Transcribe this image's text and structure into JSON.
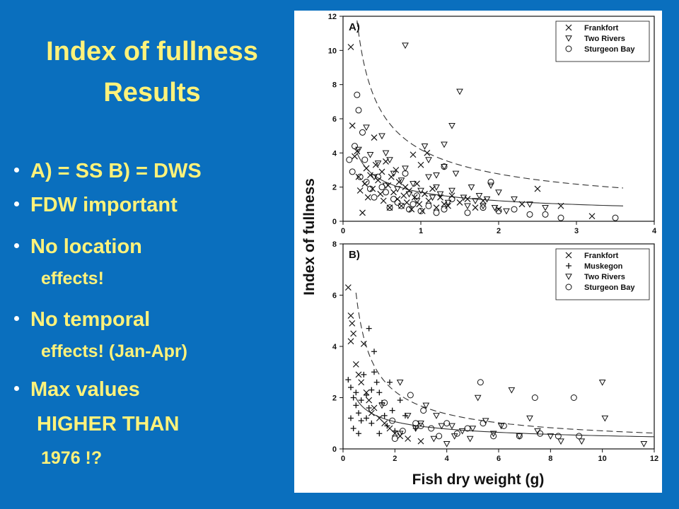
{
  "slide": {
    "title_line1": "Index of fullness",
    "title_line2": "Results",
    "bullets": [
      {
        "text": "A) = SS  B) = DWS"
      },
      {
        "text": "FDW important"
      },
      {
        "text": "No location",
        "cont": "effects!"
      },
      {
        "text": "No temporal",
        "cont": "effects! (Jan-Apr)"
      },
      {
        "text": "Max values",
        "cont": "HIGHER THAN",
        "cont2": "1976 !?"
      }
    ],
    "colors": {
      "background": "#0a6fbe",
      "text": "#fff27a",
      "bullet": "#ffffff"
    }
  },
  "chart_data": [
    {
      "type": "scatter",
      "panel_label": "A)",
      "xlabel": "Fish dry weight (g)",
      "ylabel": "Index of fullness",
      "xlim": [
        0,
        4
      ],
      "ylim": [
        0,
        12
      ],
      "xticks": [
        "0",
        "1",
        "2",
        "3",
        "4"
      ],
      "yticks": [
        "0",
        "2",
        "4",
        "6",
        "8",
        "10",
        "12"
      ],
      "legend_position": "top-right",
      "series": [
        {
          "name": "Frankfort",
          "marker": "x",
          "points": [
            [
              0.1,
              10.2
            ],
            [
              0.12,
              5.6
            ],
            [
              0.15,
              3.8
            ],
            [
              0.18,
              4.1
            ],
            [
              0.2,
              2.6
            ],
            [
              0.22,
              1.8
            ],
            [
              0.25,
              0.5
            ],
            [
              0.28,
              2.2
            ],
            [
              0.3,
              3.1
            ],
            [
              0.32,
              1.4
            ],
            [
              0.35,
              2.7
            ],
            [
              0.38,
              1.9
            ],
            [
              0.4,
              4.9
            ],
            [
              0.42,
              3.3
            ],
            [
              0.45,
              2.4
            ],
            [
              0.48,
              1.6
            ],
            [
              0.5,
              2.9
            ],
            [
              0.52,
              1.2
            ],
            [
              0.55,
              3.5
            ],
            [
              0.58,
              2.1
            ],
            [
              0.6,
              0.8
            ],
            [
              0.62,
              2.6
            ],
            [
              0.65,
              1.7
            ],
            [
              0.68,
              3.0
            ],
            [
              0.7,
              1.3
            ],
            [
              0.72,
              2.3
            ],
            [
              0.75,
              0.9
            ],
            [
              0.78,
              1.5
            ],
            [
              0.8,
              2.0
            ],
            [
              0.82,
              1.1
            ],
            [
              0.85,
              1.8
            ],
            [
              0.88,
              0.7
            ],
            [
              0.9,
              3.9
            ],
            [
              0.92,
              1.4
            ],
            [
              0.95,
              2.2
            ],
            [
              0.98,
              1.0
            ],
            [
              1.0,
              3.3
            ],
            [
              1.02,
              0.6
            ],
            [
              1.05,
              1.6
            ],
            [
              1.08,
              4.0
            ],
            [
              1.1,
              1.2
            ],
            [
              1.15,
              1.9
            ],
            [
              1.2,
              0.8
            ],
            [
              1.25,
              1.4
            ],
            [
              1.3,
              1.0
            ],
            [
              1.35,
              0.9
            ],
            [
              1.4,
              1.5
            ],
            [
              1.5,
              1.1
            ],
            [
              1.6,
              1.3
            ],
            [
              1.7,
              0.8
            ],
            [
              1.8,
              1.2
            ],
            [
              2.0,
              0.7
            ],
            [
              2.3,
              1.0
            ],
            [
              2.5,
              1.9
            ],
            [
              2.8,
              0.9
            ],
            [
              3.2,
              0.3
            ]
          ]
        },
        {
          "name": "Two Rivers",
          "marker": "triangle-down",
          "points": [
            [
              0.2,
              4.2
            ],
            [
              0.3,
              5.5
            ],
            [
              0.35,
              3.9
            ],
            [
              0.4,
              2.6
            ],
            [
              0.45,
              3.4
            ],
            [
              0.5,
              5.0
            ],
            [
              0.55,
              2.1
            ],
            [
              0.6,
              3.6
            ],
            [
              0.65,
              2.8
            ],
            [
              0.7,
              1.9
            ],
            [
              0.75,
              2.4
            ],
            [
              0.8,
              3.1
            ],
            [
              0.85,
              1.6
            ],
            [
              0.9,
              2.2
            ],
            [
              0.95,
              1.2
            ],
            [
              1.0,
              1.8
            ],
            [
              1.05,
              4.4
            ],
            [
              1.1,
              2.6
            ],
            [
              1.15,
              1.4
            ],
            [
              1.2,
              2.0
            ],
            [
              1.25,
              1.6
            ],
            [
              1.3,
              3.2
            ],
            [
              1.35,
              1.1
            ],
            [
              1.4,
              1.8
            ],
            [
              1.45,
              2.8
            ],
            [
              1.5,
              7.6
            ],
            [
              1.55,
              1.4
            ],
            [
              1.6,
              0.9
            ],
            [
              1.65,
              2.0
            ],
            [
              1.7,
              1.2
            ],
            [
              1.75,
              1.5
            ],
            [
              1.8,
              0.9
            ],
            [
              1.85,
              1.3
            ],
            [
              1.9,
              2.1
            ],
            [
              1.95,
              0.8
            ],
            [
              2.0,
              1.7
            ],
            [
              2.1,
              0.6
            ],
            [
              2.2,
              1.3
            ],
            [
              2.4,
              1.0
            ],
            [
              2.6,
              0.8
            ],
            [
              0.8,
              10.3
            ],
            [
              1.3,
              4.5
            ],
            [
              1.4,
              5.6
            ],
            [
              0.55,
              4.0
            ],
            [
              1.1,
              3.6
            ],
            [
              1.2,
              2.7
            ]
          ]
        },
        {
          "name": "Sturgeon Bay",
          "marker": "circle",
          "points": [
            [
              0.08,
              3.6
            ],
            [
              0.12,
              2.9
            ],
            [
              0.15,
              4.4
            ],
            [
              0.18,
              7.4
            ],
            [
              0.2,
              6.5
            ],
            [
              0.22,
              2.6
            ],
            [
              0.25,
              5.2
            ],
            [
              0.28,
              3.6
            ],
            [
              0.3,
              2.3
            ],
            [
              0.35,
              1.9
            ],
            [
              0.4,
              1.4
            ],
            [
              0.45,
              2.6
            ],
            [
              0.5,
              2.0
            ],
            [
              0.55,
              1.7
            ],
            [
              0.6,
              0.8
            ],
            [
              0.65,
              1.3
            ],
            [
              0.7,
              1.1
            ],
            [
              0.75,
              0.9
            ],
            [
              0.8,
              2.8
            ],
            [
              0.85,
              0.7
            ],
            [
              0.9,
              1.0
            ],
            [
              0.95,
              1.5
            ],
            [
              1.0,
              0.6
            ],
            [
              1.1,
              0.9
            ],
            [
              1.2,
              0.5
            ],
            [
              1.3,
              0.7
            ],
            [
              1.4,
              1.3
            ],
            [
              1.6,
              0.5
            ],
            [
              1.8,
              0.8
            ],
            [
              2.0,
              0.6
            ],
            [
              2.2,
              0.7
            ],
            [
              2.4,
              0.4
            ],
            [
              2.6,
              0.4
            ],
            [
              2.8,
              0.2
            ],
            [
              3.5,
              0.2
            ],
            [
              1.9,
              2.3
            ],
            [
              1.3,
              3.2
            ]
          ]
        }
      ],
      "curves": [
        {
          "style": "dashed",
          "formula": "y = 4.2 * x^-0.6",
          "x": [
            0.18,
            3.6
          ]
        },
        {
          "style": "solid",
          "formula": "y = 1.7 * x^-0.5",
          "x": [
            0.18,
            3.6
          ]
        }
      ]
    },
    {
      "type": "scatter",
      "panel_label": "B)",
      "xlabel": "Fish dry weight (g)",
      "ylabel": "Index of fullness",
      "xlim": [
        0,
        12
      ],
      "ylim": [
        0,
        8
      ],
      "xticks": [
        "0",
        "2",
        "4",
        "6",
        "8",
        "10",
        "12"
      ],
      "yticks": [
        "0",
        "2",
        "4",
        "6",
        "8"
      ],
      "legend_position": "top-right",
      "series": [
        {
          "name": "Frankfort",
          "marker": "x",
          "points": [
            [
              0.2,
              6.3
            ],
            [
              0.3,
              5.2
            ],
            [
              0.35,
              4.9
            ],
            [
              0.4,
              4.5
            ],
            [
              0.3,
              4.2
            ],
            [
              0.5,
              3.3
            ],
            [
              0.6,
              2.9
            ],
            [
              0.7,
              2.6
            ],
            [
              0.8,
              4.1
            ],
            [
              0.9,
              2.2
            ],
            [
              1.0,
              1.9
            ],
            [
              1.2,
              1.6
            ],
            [
              1.4,
              1.2
            ],
            [
              1.6,
              1.0
            ],
            [
              1.8,
              0.8
            ],
            [
              2.0,
              0.6
            ],
            [
              2.2,
              0.5
            ],
            [
              2.5,
              0.4
            ],
            [
              3.0,
              0.3
            ],
            [
              1.1,
              1.4
            ]
          ]
        },
        {
          "name": "Muskegon",
          "marker": "plus",
          "points": [
            [
              0.2,
              2.7
            ],
            [
              0.3,
              2.4
            ],
            [
              0.4,
              2.0
            ],
            [
              0.5,
              1.7
            ],
            [
              0.6,
              1.4
            ],
            [
              0.7,
              1.1
            ],
            [
              0.8,
              2.9
            ],
            [
              0.9,
              2.1
            ],
            [
              1.0,
              1.6
            ],
            [
              1.1,
              1.0
            ],
            [
              1.2,
              3.0
            ],
            [
              1.3,
              2.6
            ],
            [
              1.4,
              2.2
            ],
            [
              1.5,
              1.8
            ],
            [
              1.6,
              1.3
            ],
            [
              1.7,
              0.9
            ],
            [
              1.8,
              2.6
            ],
            [
              1.9,
              1.5
            ],
            [
              2.0,
              0.7
            ],
            [
              2.2,
              1.9
            ],
            [
              1.0,
              4.7
            ],
            [
              1.2,
              3.8
            ],
            [
              0.4,
              0.8
            ],
            [
              0.3,
              1.2
            ],
            [
              0.6,
              0.6
            ],
            [
              0.9,
              1.2
            ],
            [
              1.4,
              0.6
            ],
            [
              2.4,
              1.3
            ],
            [
              2.8,
              0.8
            ],
            [
              0.5,
              2.2
            ],
            [
              0.7,
              1.9
            ],
            [
              1.1,
              2.3
            ]
          ]
        },
        {
          "name": "Two Rivers",
          "marker": "triangle-down",
          "points": [
            [
              1.5,
              1.7
            ],
            [
              2.2,
              0.6
            ],
            [
              2.5,
              1.3
            ],
            [
              2.8,
              0.8
            ],
            [
              3.0,
              1.0
            ],
            [
              3.2,
              1.7
            ],
            [
              3.5,
              0.4
            ],
            [
              3.8,
              0.9
            ],
            [
              4.0,
              0.2
            ],
            [
              4.3,
              0.5
            ],
            [
              4.6,
              0.7
            ],
            [
              4.9,
              0.4
            ],
            [
              5.2,
              2.0
            ],
            [
              5.5,
              1.1
            ],
            [
              5.8,
              0.6
            ],
            [
              6.1,
              0.9
            ],
            [
              6.5,
              2.3
            ],
            [
              6.8,
              0.5
            ],
            [
              7.2,
              1.2
            ],
            [
              7.5,
              0.7
            ],
            [
              8.0,
              0.5
            ],
            [
              8.4,
              0.3
            ],
            [
              9.2,
              0.3
            ],
            [
              10.0,
              2.6
            ],
            [
              10.1,
              1.2
            ],
            [
              11.6,
              0.2
            ],
            [
              2.2,
              2.6
            ],
            [
              3.6,
              1.3
            ],
            [
              4.2,
              0.9
            ],
            [
              5.0,
              0.8
            ]
          ]
        },
        {
          "name": "Sturgeon Bay",
          "marker": "circle",
          "points": [
            [
              1.6,
              1.8
            ],
            [
              1.9,
              1.1
            ],
            [
              2.3,
              0.7
            ],
            [
              2.6,
              2.1
            ],
            [
              2.8,
              1.0
            ],
            [
              3.1,
              1.5
            ],
            [
              3.4,
              0.8
            ],
            [
              3.7,
              0.5
            ],
            [
              4.0,
              1.0
            ],
            [
              4.4,
              0.6
            ],
            [
              4.8,
              0.8
            ],
            [
              5.3,
              2.6
            ],
            [
              5.4,
              1.0
            ],
            [
              5.8,
              0.5
            ],
            [
              6.2,
              0.9
            ],
            [
              6.8,
              0.5
            ],
            [
              7.4,
              2.0
            ],
            [
              7.6,
              0.6
            ],
            [
              8.3,
              0.5
            ],
            [
              8.9,
              2.0
            ],
            [
              9.1,
              0.5
            ],
            [
              2.0,
              0.4
            ],
            [
              3.0,
              0.9
            ]
          ]
        }
      ],
      "curves": [
        {
          "style": "dashed",
          "formula": "y = 3.7 * x^-0.72",
          "x": [
            0.5,
            12
          ]
        },
        {
          "style": "solid",
          "formula": "y = 1.45 * x^-0.45",
          "x": [
            0.5,
            12
          ]
        }
      ]
    }
  ]
}
